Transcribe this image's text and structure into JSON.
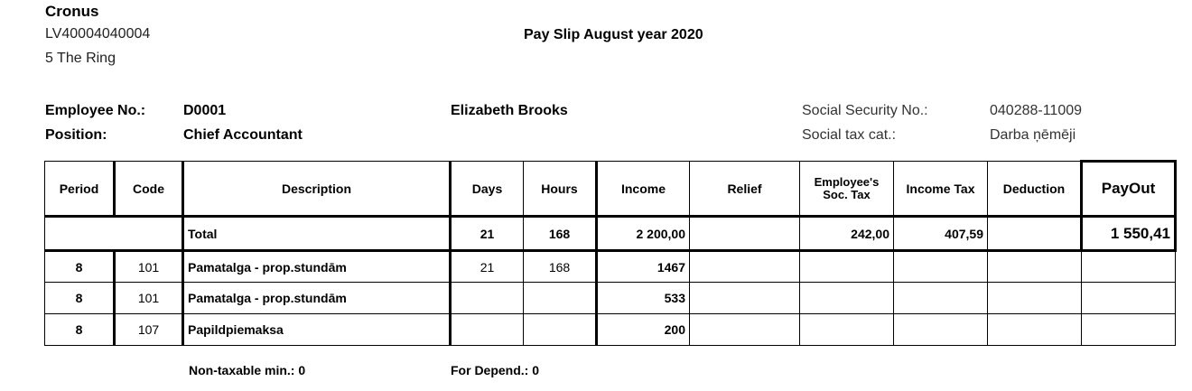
{
  "company": {
    "name": "Cronus",
    "reg_no": "LV40004040004",
    "address": "5 The Ring"
  },
  "title": "Pay Slip August year 2020",
  "employee": {
    "no_label": "Employee No.:",
    "no": "D0001",
    "name": "Elizabeth Brooks",
    "position_label": "Position:",
    "position": "Chief Accountant",
    "ssn_label": "Social Security No.:",
    "ssn": "040288-11009",
    "tax_cat_label": "Social tax cat.:",
    "tax_cat": "Darba ņēmēji"
  },
  "table": {
    "headers": {
      "period": "Period",
      "code": "Code",
      "description": "Description",
      "days": "Days",
      "hours": "Hours",
      "income": "Income",
      "relief": "Relief",
      "emp_soc_tax_1": "Employee's",
      "emp_soc_tax_2": "Soc. Tax",
      "income_tax": "Income Tax",
      "deduction": "Deduction",
      "payout": "PayOut"
    },
    "total": {
      "label": "Total",
      "days": "21",
      "hours": "168",
      "income": "2 200,00",
      "relief": "",
      "soc_tax": "242,00",
      "income_tax": "407,59",
      "deduction": "",
      "payout": "1 550,41"
    },
    "rows": [
      {
        "period": "8",
        "code": "101",
        "description": "Pamatalga - prop.stundām",
        "days": "21",
        "hours": "168",
        "income": "1467"
      },
      {
        "period": "8",
        "code": "101",
        "description": "Pamatalga - prop.stundām",
        "days": "",
        "hours": "",
        "income": "533"
      },
      {
        "period": "8",
        "code": "107",
        "description": "Papildpiemaksa",
        "days": "",
        "hours": "",
        "income": "200"
      }
    ]
  },
  "footer": {
    "non_taxable": "Non-taxable min.:  0",
    "for_depend": "For Depend.: 0"
  }
}
